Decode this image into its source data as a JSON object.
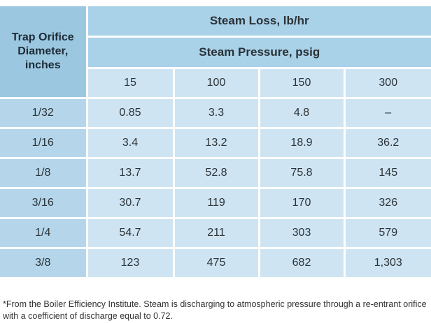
{
  "table": {
    "row_header": "Trap Orifice Diameter, inches",
    "group_header": "Steam Loss, lb/hr",
    "sub_header": "Steam Pressure, psig",
    "columns": [
      "15",
      "100",
      "150",
      "300"
    ],
    "rows": [
      {
        "label": "1/32",
        "values": [
          "0.85",
          "3.3",
          "4.8",
          "–"
        ]
      },
      {
        "label": "1/16",
        "values": [
          "3.4",
          "13.2",
          "18.9",
          "36.2"
        ]
      },
      {
        "label": "1/8",
        "values": [
          "13.7",
          "52.8",
          "75.8",
          "145"
        ]
      },
      {
        "label": "3/16",
        "values": [
          "30.7",
          "119",
          "170",
          "326"
        ]
      },
      {
        "label": "1/4",
        "values": [
          "54.7",
          "211",
          "303",
          "579"
        ]
      },
      {
        "label": "3/8",
        "values": [
          "123",
          "475",
          "682",
          "1,303"
        ]
      }
    ]
  },
  "footnote": "*From the Boiler Efficiency Institute. Steam is discharging to atmospheric pressure through a re-entrant orifice with a coefficient of discharge equal to 0.72.",
  "colors": {
    "header_dark": "#9cc7e0",
    "header_mid": "#a9d1e8",
    "cell_light": "#cfe4f2",
    "row_label": "#b5d6ea"
  }
}
